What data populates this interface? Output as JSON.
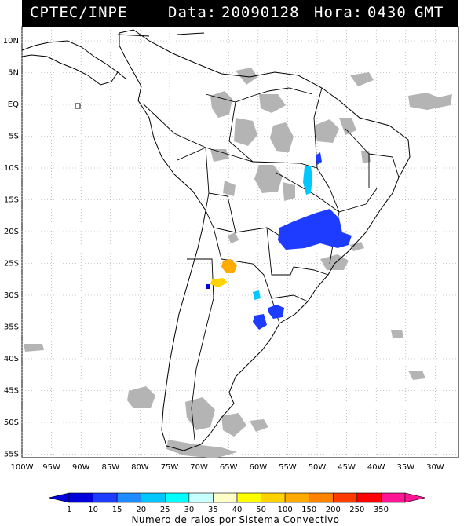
{
  "header": {
    "source": "CPTEC/INPE",
    "date_label": "Data:",
    "date_value": "20090128",
    "time_label": "Hora:",
    "time_value": "0430",
    "tz": "GMT"
  },
  "lat_labels": [
    "10N",
    "5N",
    "EQ",
    "5S",
    "10S",
    "15S",
    "20S",
    "25S",
    "30S",
    "35S",
    "40S",
    "45S",
    "50S",
    "55S"
  ],
  "lon_labels": [
    "100W",
    "95W",
    "90W",
    "85W",
    "80W",
    "75W",
    "70W",
    "65W",
    "60W",
    "55W",
    "50W",
    "45W",
    "40W",
    "35W",
    "30W"
  ],
  "legend": {
    "title": "Numero de raios por Sistema Convectivo",
    "values": [
      "1",
      "10",
      "15",
      "20",
      "25",
      "30",
      "35",
      "40",
      "50",
      "100",
      "150",
      "200",
      "250",
      "350"
    ],
    "colors": [
      "#0000dc",
      "#1e3cff",
      "#1e8cff",
      "#00c8ff",
      "#00ffff",
      "#c8ffff",
      "#ffffc8",
      "#ffff00",
      "#ffd200",
      "#ffaa00",
      "#ff8200",
      "#ff3c00",
      "#ff0000",
      "#ff1493"
    ]
  },
  "colors": {
    "cloud": "#b4b4b4",
    "ocean": "#ffffff",
    "coast": "#000000"
  }
}
